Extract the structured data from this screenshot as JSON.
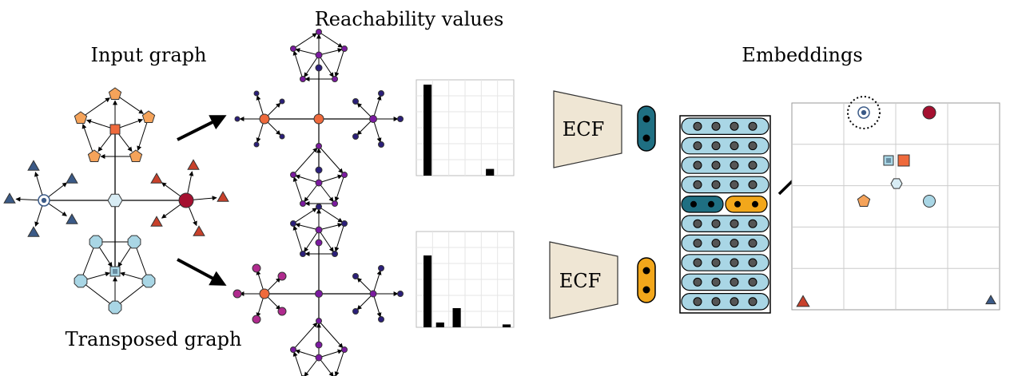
{
  "labels": {
    "input_graph": "Input graph",
    "transposed_graph": "Transposed graph",
    "reachability": "Reachability values",
    "embeddings": "Embeddings"
  },
  "encoder": {
    "top_label": "ECF",
    "bottom_label": "ECF"
  },
  "histograms": {
    "top_values": [
      0.95,
      0,
      0,
      0,
      0.07,
      0
    ],
    "bottom_values": [
      0.75,
      0.05,
      0.2,
      0,
      0,
      0.03
    ]
  },
  "colors": {
    "blue_cluster": "#3b5a87",
    "red_cluster": "#c8412b",
    "dark_red": "#a51030",
    "orange": "#f5a35a",
    "orange_square": "#ef6a3c",
    "light_blue": "#a9d6e5",
    "purple": "#7b1aa0",
    "navy_dot": "#2b1f7a",
    "magenta": "#b02a8e",
    "teal": "#1f6f82",
    "gold": "#f2a71b",
    "matrix_cell": "#a9d6e5",
    "ecf_fill": "#efe6d4"
  },
  "embedding_points": [
    {
      "shape": "ringed-circle",
      "color": "#3b5a87",
      "highlighted": true
    },
    {
      "shape": "circle",
      "color": "#a51030"
    },
    {
      "shape": "square",
      "color": "#a9d6e5"
    },
    {
      "shape": "square",
      "color": "#ef6a3c"
    },
    {
      "shape": "hexagon",
      "color": "#d8ecf4"
    },
    {
      "shape": "pentagon",
      "color": "#f5a35a"
    },
    {
      "shape": "circle",
      "color": "#a9d6e5"
    },
    {
      "shape": "triangle",
      "color": "#c8412b"
    },
    {
      "shape": "triangle",
      "color": "#3b5a87"
    }
  ]
}
